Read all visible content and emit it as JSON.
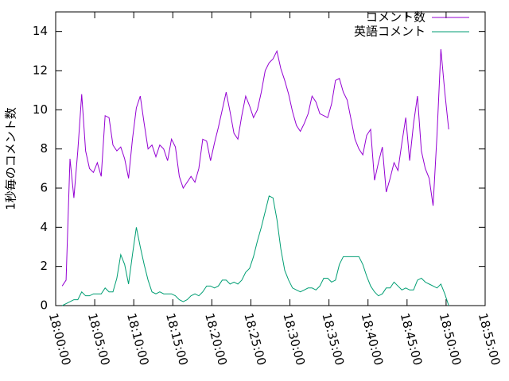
{
  "chart_data": {
    "type": "line",
    "y_label": "1秒毎のコメント数",
    "x": [
      "18:00:50",
      "18:01:20",
      "18:01:50",
      "18:02:20",
      "18:02:50",
      "18:03:20",
      "18:03:50",
      "18:04:20",
      "18:04:50",
      "18:05:20",
      "18:05:50",
      "18:06:20",
      "18:06:50",
      "18:07:20",
      "18:07:50",
      "18:08:20",
      "18:08:50",
      "18:09:20",
      "18:09:50",
      "18:10:20",
      "18:10:50",
      "18:11:20",
      "18:11:50",
      "18:12:20",
      "18:12:50",
      "18:13:20",
      "18:13:50",
      "18:14:20",
      "18:14:50",
      "18:15:20",
      "18:15:50",
      "18:16:20",
      "18:16:50",
      "18:17:20",
      "18:17:50",
      "18:18:20",
      "18:18:50",
      "18:19:20",
      "18:19:50",
      "18:20:20",
      "18:20:50",
      "18:21:20",
      "18:21:50",
      "18:22:20",
      "18:22:50",
      "18:23:20",
      "18:23:50",
      "18:24:20",
      "18:24:50",
      "18:25:20",
      "18:25:50",
      "18:26:20",
      "18:26:50",
      "18:27:20",
      "18:27:50",
      "18:28:20",
      "18:28:50",
      "18:29:20",
      "18:29:50",
      "18:30:20",
      "18:30:50",
      "18:31:20",
      "18:31:50",
      "18:32:20",
      "18:32:50",
      "18:33:20",
      "18:33:50",
      "18:34:20",
      "18:34:50",
      "18:35:20",
      "18:35:50",
      "18:36:20",
      "18:36:50",
      "18:37:20",
      "18:37:50",
      "18:38:20",
      "18:38:50",
      "18:39:20",
      "18:39:50",
      "18:40:20",
      "18:40:50",
      "18:41:20",
      "18:41:50",
      "18:42:20",
      "18:42:50",
      "18:43:20",
      "18:43:50",
      "18:44:20",
      "18:44:50",
      "18:45:20",
      "18:45:50",
      "18:46:20",
      "18:46:50",
      "18:47:20",
      "18:47:50",
      "18:48:20",
      "18:48:50",
      "18:49:20",
      "18:49:50",
      "18:50:20"
    ],
    "series": [
      {
        "name": "コメント数",
        "color": "#9400d3",
        "values": [
          1.0,
          1.3,
          7.5,
          5.5,
          7.9,
          10.8,
          7.9,
          7.0,
          6.8,
          7.3,
          6.6,
          9.7,
          9.6,
          8.2,
          7.9,
          8.1,
          7.5,
          6.5,
          8.5,
          10.1,
          10.7,
          9.3,
          8.0,
          8.2,
          7.6,
          8.2,
          8.0,
          7.4,
          8.5,
          8.1,
          6.6,
          6.0,
          6.3,
          6.6,
          6.3,
          7.0,
          8.5,
          8.4,
          7.4,
          8.3,
          9.1,
          10.0,
          10.9,
          9.9,
          8.8,
          8.5,
          9.7,
          10.7,
          10.2,
          9.6,
          10.0,
          10.9,
          12.0,
          12.4,
          12.6,
          13.0,
          12.1,
          11.5,
          10.8,
          9.9,
          9.2,
          8.9,
          9.3,
          9.8,
          10.7,
          10.4,
          9.8,
          9.7,
          9.6,
          10.3,
          11.5,
          11.6,
          10.9,
          10.5,
          9.5,
          8.5,
          8.0,
          7.7,
          8.7,
          9.0,
          6.4,
          7.3,
          8.1,
          5.8,
          6.5,
          7.3,
          6.9,
          8.3,
          9.6,
          7.4,
          9.3,
          10.7,
          7.9,
          7.0,
          6.5,
          5.1,
          8.7,
          13.1,
          10.9,
          9.0
        ]
      },
      {
        "name": "英語コメント",
        "color": "#009e73",
        "values": [
          0.0,
          0.1,
          0.2,
          0.3,
          0.3,
          0.7,
          0.5,
          0.5,
          0.6,
          0.6,
          0.6,
          0.9,
          0.7,
          0.7,
          1.4,
          2.6,
          2.1,
          1.1,
          2.6,
          4.0,
          3.0,
          2.1,
          1.3,
          0.7,
          0.6,
          0.7,
          0.6,
          0.6,
          0.6,
          0.5,
          0.3,
          0.2,
          0.3,
          0.5,
          0.6,
          0.5,
          0.7,
          1.0,
          1.0,
          0.9,
          1.0,
          1.3,
          1.3,
          1.1,
          1.2,
          1.1,
          1.3,
          1.7,
          1.9,
          2.5,
          3.3,
          4.0,
          4.8,
          5.6,
          5.5,
          4.4,
          2.9,
          1.8,
          1.3,
          0.9,
          0.8,
          0.7,
          0.8,
          0.9,
          0.9,
          0.8,
          1.0,
          1.4,
          1.4,
          1.2,
          1.3,
          2.1,
          2.5,
          2.5,
          2.5,
          2.5,
          2.5,
          2.1,
          1.5,
          1.0,
          0.7,
          0.5,
          0.6,
          0.9,
          0.9,
          1.2,
          1.0,
          0.8,
          0.9,
          0.8,
          0.8,
          1.3,
          1.4,
          1.2,
          1.1,
          1.0,
          0.9,
          1.1,
          0.6,
          0.0
        ]
      }
    ],
    "xlim": [
      "18:00:00",
      "18:55:00"
    ],
    "xticks": [
      "18:00:00",
      "18:05:00",
      "18:10:00",
      "18:15:00",
      "18:20:00",
      "18:25:00",
      "18:30:00",
      "18:35:00",
      "18:40:00",
      "18:45:00",
      "18:50:00",
      "18:55:00"
    ],
    "ylim": [
      0,
      15
    ],
    "yticks": [
      0,
      2,
      4,
      6,
      8,
      10,
      12,
      14
    ],
    "legend": "top-right"
  }
}
